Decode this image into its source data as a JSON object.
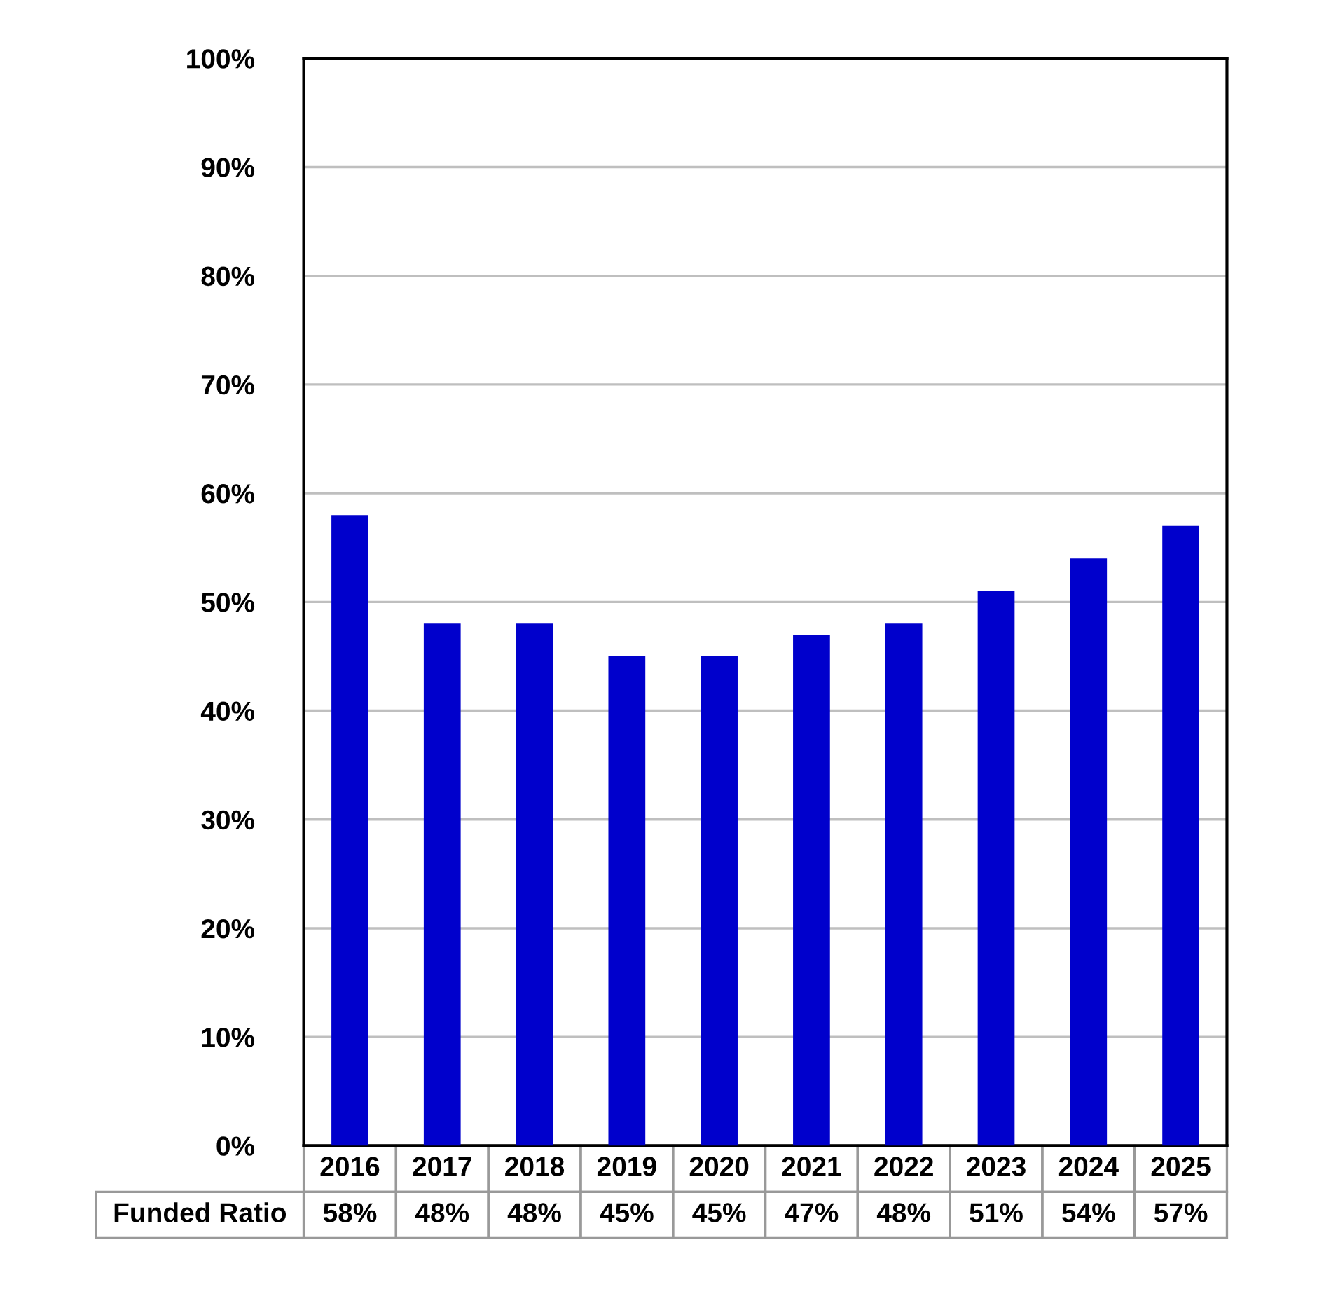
{
  "chart_data": {
    "type": "bar",
    "categories": [
      "2016",
      "2017",
      "2018",
      "2019",
      "2020",
      "2021",
      "2022",
      "2023",
      "2024",
      "2025"
    ],
    "series": [
      {
        "name": "Funded Ratio",
        "color": "#0000cc",
        "values": [
          58,
          48,
          48,
          45,
          45,
          47,
          48,
          51,
          54,
          57
        ],
        "value_labels": [
          "58%",
          "48%",
          "48%",
          "45%",
          "45%",
          "47%",
          "48%",
          "51%",
          "54%",
          "57%"
        ]
      }
    ],
    "ylim": [
      0,
      100
    ],
    "yticks": [
      {
        "value": 0,
        "label": "0%"
      },
      {
        "value": 10,
        "label": "10%"
      },
      {
        "value": 20,
        "label": "20%"
      },
      {
        "value": 30,
        "label": "30%"
      },
      {
        "value": 40,
        "label": "40%"
      },
      {
        "value": 50,
        "label": "50%"
      },
      {
        "value": 60,
        "label": "60%"
      },
      {
        "value": 70,
        "label": "70%"
      },
      {
        "value": 80,
        "label": "80%"
      },
      {
        "value": 90,
        "label": "90%"
      },
      {
        "value": 100,
        "label": "100%"
      }
    ],
    "grid": "y"
  }
}
